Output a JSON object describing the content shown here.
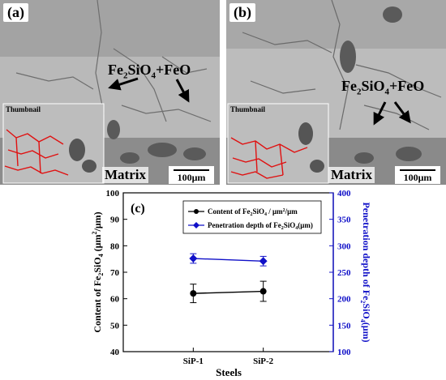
{
  "panels": [
    {
      "id": "a",
      "label": "(a)",
      "annotation_main": "Fe",
      "annotation_sub1": "2",
      "annotation_mid": "SiO",
      "annotation_sub2": "4",
      "annotation_tail": "+FeO",
      "thumbnail_label": "Thumbnail",
      "matrix_label": "Matrix",
      "scale_label": "100μm"
    },
    {
      "id": "b",
      "label": "(b)",
      "annotation_main": "Fe",
      "annotation_sub1": "2",
      "annotation_mid": "SiO",
      "annotation_sub2": "4",
      "annotation_tail": "+FeO",
      "thumbnail_label": "Thumbnail",
      "matrix_label": "Matrix",
      "scale_label": "100μm"
    }
  ],
  "chart_data": {
    "type": "line",
    "panel_label": "(c)",
    "categories": [
      "SiP-1",
      "SiP-2"
    ],
    "xlabel": "Steels",
    "ylabel_left": "Content of Fe₂SiO₄ (μm²/μm)",
    "ylabel_right": "Penetration depth of Fe₂SiO₄(μm)",
    "ylim_left": [
      40,
      100
    ],
    "ylim_right": [
      100,
      400
    ],
    "yticks_left": [
      40,
      50,
      60,
      70,
      80,
      90,
      100
    ],
    "yticks_right": [
      100,
      150,
      200,
      250,
      300,
      350,
      400
    ],
    "series": [
      {
        "name": "Content of Fe₂SiO₄ / μm²/μm",
        "axis": "left",
        "color": "#000000",
        "marker": "circle",
        "values": [
          62,
          62.8
        ],
        "errors": [
          3.5,
          3.8
        ]
      },
      {
        "name": "Penetration depth of Fe₂SiO₄(μm)",
        "axis": "right",
        "color": "#1010c8",
        "marker": "diamond",
        "values": [
          276,
          271
        ],
        "errors": [
          9,
          9
        ]
      }
    ],
    "legend_position": "top-center",
    "right_axis_color": "#1010c8"
  }
}
